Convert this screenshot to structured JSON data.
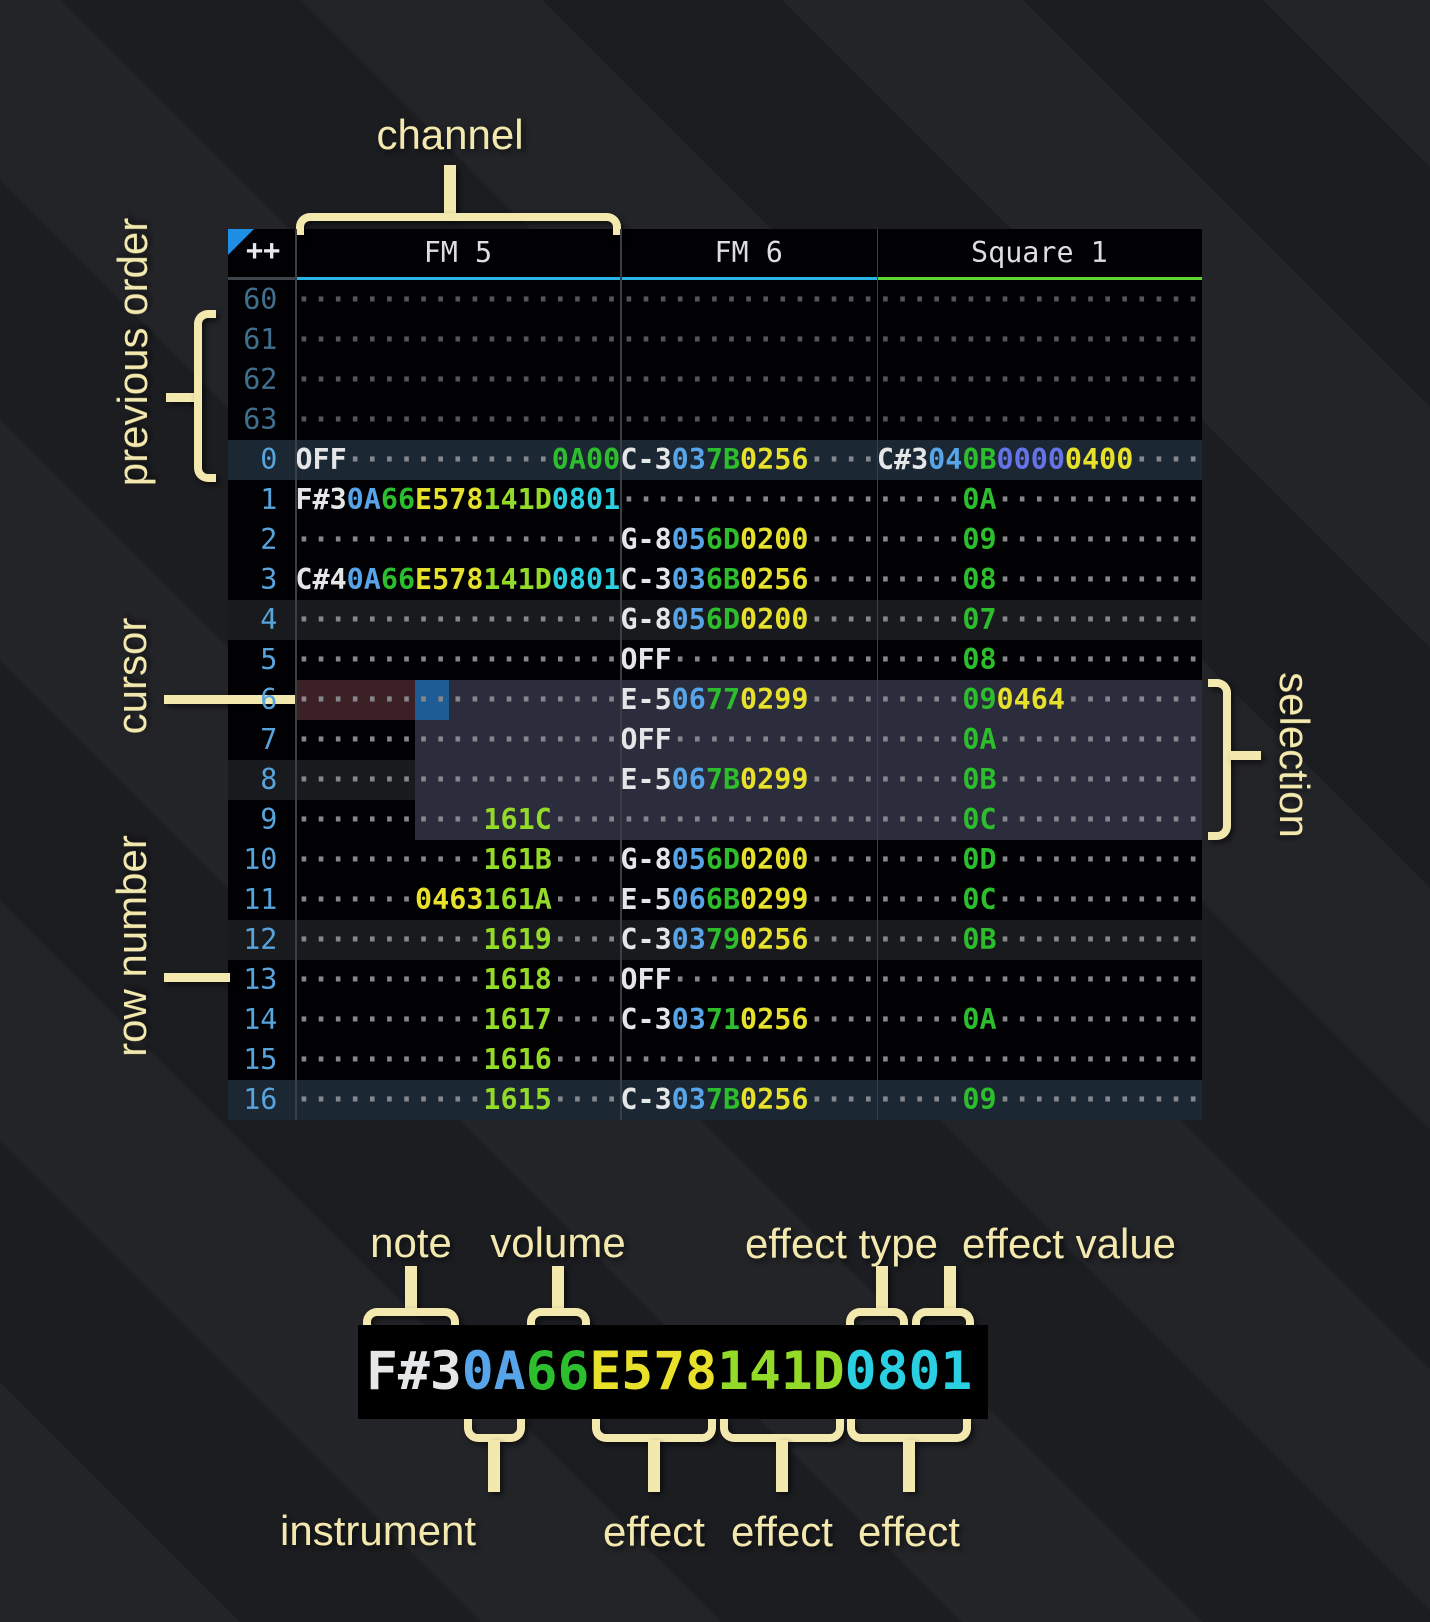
{
  "annotations": {
    "channel": "channel",
    "previous_order": "previous order",
    "cursor": "cursor",
    "row_number": "row number",
    "selection": "selection"
  },
  "tracker": {
    "corner": "++",
    "channels": [
      {
        "name": "FM 5",
        "color": "#29b4e8"
      },
      {
        "name": "FM 6",
        "color": "#29b4e8"
      },
      {
        "name": "Square 1",
        "color": "#5fd435"
      }
    ],
    "rows": [
      {
        "num": "60",
        "style": "dim",
        "fm5": [
          [
            "···················",
            "dot"
          ]
        ],
        "fm6": [
          [
            "···············",
            "dot"
          ]
        ],
        "sq1": [
          [
            "···················",
            "dot"
          ]
        ]
      },
      {
        "num": "61",
        "style": "dim",
        "fm5": [
          [
            "···················",
            "dot"
          ]
        ],
        "fm6": [
          [
            "···············",
            "dot"
          ]
        ],
        "sq1": [
          [
            "···················",
            "dot"
          ]
        ]
      },
      {
        "num": "62",
        "style": "dim",
        "fm5": [
          [
            "···················",
            "dot"
          ]
        ],
        "fm6": [
          [
            "···············",
            "dot"
          ]
        ],
        "sq1": [
          [
            "···················",
            "dot"
          ]
        ]
      },
      {
        "num": "63",
        "style": "dim",
        "fm5": [
          [
            "···················",
            "dot"
          ]
        ],
        "fm6": [
          [
            "···············",
            "dot"
          ]
        ],
        "sq1": [
          [
            "···················",
            "dot"
          ]
        ]
      },
      {
        "num": "0",
        "style": "hl16",
        "fm5": [
          [
            "OFF",
            "note"
          ],
          [
            "············",
            "dot"
          ],
          [
            "0A00",
            "vol"
          ]
        ],
        "fm6": [
          [
            "C-3",
            "note"
          ],
          [
            "03",
            "ins"
          ],
          [
            "7B",
            "vol"
          ],
          [
            "0256",
            "fxY"
          ],
          [
            "····",
            "dot"
          ]
        ],
        "sq1": [
          [
            "C#3",
            "note"
          ],
          [
            "04",
            "ins"
          ],
          [
            "0B",
            "vol"
          ],
          [
            "0000",
            "fxP"
          ],
          [
            "0400",
            "fxY"
          ],
          [
            "····",
            "dot"
          ]
        ]
      },
      {
        "num": "1",
        "style": "",
        "fm5": [
          [
            "F#3",
            "note"
          ],
          [
            "0A",
            "ins"
          ],
          [
            "66",
            "vol"
          ],
          [
            "E578",
            "fxY"
          ],
          [
            "141D",
            "fxG"
          ],
          [
            "0801",
            "fxC"
          ]
        ],
        "fm6": [
          [
            "···············",
            "dot"
          ]
        ],
        "sq1": [
          [
            "·····",
            "dot"
          ],
          [
            "0A",
            "vol"
          ],
          [
            "············",
            "dot"
          ]
        ]
      },
      {
        "num": "2",
        "style": "",
        "fm5": [
          [
            "···················",
            "dot"
          ]
        ],
        "fm6": [
          [
            "G-8",
            "note"
          ],
          [
            "05",
            "ins"
          ],
          [
            "6D",
            "vol"
          ],
          [
            "0200",
            "fxY"
          ],
          [
            "····",
            "dot"
          ]
        ],
        "sq1": [
          [
            "·····",
            "dot"
          ],
          [
            "09",
            "vol"
          ],
          [
            "············",
            "dot"
          ]
        ]
      },
      {
        "num": "3",
        "style": "",
        "fm5": [
          [
            "C#4",
            "note"
          ],
          [
            "0A",
            "ins"
          ],
          [
            "66",
            "vol"
          ],
          [
            "E578",
            "fxY"
          ],
          [
            "141D",
            "fxG"
          ],
          [
            "0801",
            "fxC"
          ]
        ],
        "fm6": [
          [
            "C-3",
            "note"
          ],
          [
            "03",
            "ins"
          ],
          [
            "6B",
            "vol"
          ],
          [
            "0256",
            "fxY"
          ],
          [
            "····",
            "dot"
          ]
        ],
        "sq1": [
          [
            "·····",
            "dot"
          ],
          [
            "08",
            "vol"
          ],
          [
            "············",
            "dot"
          ]
        ]
      },
      {
        "num": "4",
        "style": "hl4",
        "fm5": [
          [
            "···················",
            "dot"
          ]
        ],
        "fm6": [
          [
            "G-8",
            "note"
          ],
          [
            "05",
            "ins"
          ],
          [
            "6D",
            "vol"
          ],
          [
            "0200",
            "fxY"
          ],
          [
            "····",
            "dot"
          ]
        ],
        "sq1": [
          [
            "·····",
            "dot"
          ],
          [
            "07",
            "vol"
          ],
          [
            "············",
            "dot"
          ]
        ]
      },
      {
        "num": "5",
        "style": "",
        "fm5": [
          [
            "···················",
            "dot"
          ]
        ],
        "fm6": [
          [
            "OFF",
            "note"
          ],
          [
            "············",
            "dot"
          ]
        ],
        "sq1": [
          [
            "·····",
            "dot"
          ],
          [
            "08",
            "vol"
          ],
          [
            "············",
            "dot"
          ]
        ]
      },
      {
        "num": "6",
        "style": "",
        "fm5": [
          [
            "···················",
            "dot"
          ]
        ],
        "fm6": [
          [
            "E-5",
            "note"
          ],
          [
            "06",
            "ins"
          ],
          [
            "77",
            "vol"
          ],
          [
            "0299",
            "fxY"
          ],
          [
            "····",
            "dot"
          ]
        ],
        "sq1": [
          [
            "·····",
            "dot"
          ],
          [
            "09",
            "vol"
          ],
          [
            "0464",
            "fxY"
          ],
          [
            "········",
            "dot"
          ]
        ]
      },
      {
        "num": "7",
        "style": "",
        "fm5": [
          [
            "···················",
            "dot"
          ]
        ],
        "fm6": [
          [
            "OFF",
            "note"
          ],
          [
            "············",
            "dot"
          ]
        ],
        "sq1": [
          [
            "·····",
            "dot"
          ],
          [
            "0A",
            "vol"
          ],
          [
            "············",
            "dot"
          ]
        ]
      },
      {
        "num": "8",
        "style": "hl4",
        "fm5": [
          [
            "···················",
            "dot"
          ]
        ],
        "fm6": [
          [
            "E-5",
            "note"
          ],
          [
            "06",
            "ins"
          ],
          [
            "7B",
            "vol"
          ],
          [
            "0299",
            "fxY"
          ],
          [
            "····",
            "dot"
          ]
        ],
        "sq1": [
          [
            "·····",
            "dot"
          ],
          [
            "0B",
            "vol"
          ],
          [
            "············",
            "dot"
          ]
        ]
      },
      {
        "num": "9",
        "style": "",
        "fm5": [
          [
            "···········",
            "dot"
          ],
          [
            "161C",
            "fxG"
          ],
          [
            "····",
            "dot"
          ]
        ],
        "fm6": [
          [
            "···············",
            "dot"
          ]
        ],
        "sq1": [
          [
            "·····",
            "dot"
          ],
          [
            "0C",
            "vol"
          ],
          [
            "············",
            "dot"
          ]
        ]
      },
      {
        "num": "10",
        "style": "",
        "fm5": [
          [
            "···········",
            "dot"
          ],
          [
            "161B",
            "fxG"
          ],
          [
            "····",
            "dot"
          ]
        ],
        "fm6": [
          [
            "G-8",
            "note"
          ],
          [
            "05",
            "ins"
          ],
          [
            "6D",
            "vol"
          ],
          [
            "0200",
            "fxY"
          ],
          [
            "····",
            "dot"
          ]
        ],
        "sq1": [
          [
            "·····",
            "dot"
          ],
          [
            "0D",
            "vol"
          ],
          [
            "············",
            "dot"
          ]
        ]
      },
      {
        "num": "11",
        "style": "",
        "fm5": [
          [
            "·······",
            "dot"
          ],
          [
            "0463",
            "fxY"
          ],
          [
            "161A",
            "fxG"
          ],
          [
            "····",
            "dot"
          ]
        ],
        "fm6": [
          [
            "E-5",
            "note"
          ],
          [
            "06",
            "ins"
          ],
          [
            "6B",
            "vol"
          ],
          [
            "0299",
            "fxY"
          ],
          [
            "····",
            "dot"
          ]
        ],
        "sq1": [
          [
            "·····",
            "dot"
          ],
          [
            "0C",
            "vol"
          ],
          [
            "············",
            "dot"
          ]
        ]
      },
      {
        "num": "12",
        "style": "hl4",
        "fm5": [
          [
            "···········",
            "dot"
          ],
          [
            "1619",
            "fxG"
          ],
          [
            "····",
            "dot"
          ]
        ],
        "fm6": [
          [
            "C-3",
            "note"
          ],
          [
            "03",
            "ins"
          ],
          [
            "79",
            "vol"
          ],
          [
            "0256",
            "fxY"
          ],
          [
            "····",
            "dot"
          ]
        ],
        "sq1": [
          [
            "·····",
            "dot"
          ],
          [
            "0B",
            "vol"
          ],
          [
            "············",
            "dot"
          ]
        ]
      },
      {
        "num": "13",
        "style": "",
        "fm5": [
          [
            "···········",
            "dot"
          ],
          [
            "1618",
            "fxG"
          ],
          [
            "····",
            "dot"
          ]
        ],
        "fm6": [
          [
            "OFF",
            "note"
          ],
          [
            "············",
            "dot"
          ]
        ],
        "sq1": [
          [
            "···················",
            "dot"
          ]
        ]
      },
      {
        "num": "14",
        "style": "",
        "fm5": [
          [
            "···········",
            "dot"
          ],
          [
            "1617",
            "fxG"
          ],
          [
            "····",
            "dot"
          ]
        ],
        "fm6": [
          [
            "C-3",
            "note"
          ],
          [
            "03",
            "ins"
          ],
          [
            "71",
            "vol"
          ],
          [
            "0256",
            "fxY"
          ],
          [
            "····",
            "dot"
          ]
        ],
        "sq1": [
          [
            "·····",
            "dot"
          ],
          [
            "0A",
            "vol"
          ],
          [
            "············",
            "dot"
          ]
        ]
      },
      {
        "num": "15",
        "style": "",
        "fm5": [
          [
            "···········",
            "dot"
          ],
          [
            "1616",
            "fxG"
          ],
          [
            "····",
            "dot"
          ]
        ],
        "fm6": [
          [
            "···············",
            "dot"
          ]
        ],
        "sq1": [
          [
            "···················",
            "dot"
          ]
        ]
      },
      {
        "num": "16",
        "style": "hl16",
        "fm5": [
          [
            "···········",
            "dot"
          ],
          [
            "1615",
            "fxG"
          ],
          [
            "····",
            "dot"
          ]
        ],
        "fm6": [
          [
            "C-3",
            "note"
          ],
          [
            "03",
            "ins"
          ],
          [
            "7B",
            "vol"
          ],
          [
            "0256",
            "fxY"
          ],
          [
            "····",
            "dot"
          ]
        ],
        "sq1": [
          [
            "·····",
            "dot"
          ],
          [
            "09",
            "vol"
          ],
          [
            "············",
            "dot"
          ]
        ]
      }
    ]
  },
  "legend": {
    "cell_segments": [
      [
        "F#3",
        "note"
      ],
      [
        "0A",
        "ins"
      ],
      [
        "66",
        "vol"
      ],
      [
        "E578",
        "fxY"
      ],
      [
        "141D",
        "fxG"
      ],
      [
        "0801",
        "fxC"
      ]
    ],
    "labels_top": [
      "note",
      "volume",
      "effect type",
      "effect value"
    ],
    "labels_bottom": [
      "instrument",
      "effect",
      "effect",
      "effect"
    ]
  },
  "colors": {
    "note": "#e4e6e8",
    "ins": "#57a5e8",
    "vol": "#2dbe2d",
    "fxY": "#e8e12c",
    "fxG": "#94da28",
    "fxC": "#2ad0e2",
    "fxP": "#6673e6",
    "dot": "#85878c",
    "dotDim": "#53565c",
    "rownum": "#58a4dd",
    "rownumDim": "#41708f",
    "cornerRule": "#3f434a",
    "cursor": "#1d5c94",
    "cursorRow": "#3b2126",
    "selection": "#2b2d3c",
    "annotation": "#f3e9ae",
    "triangle": "#1f8fe6"
  }
}
